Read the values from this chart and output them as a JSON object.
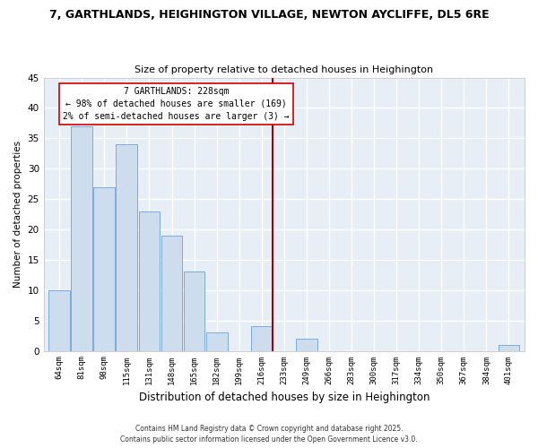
{
  "title": "7, GARTHLANDS, HEIGHINGTON VILLAGE, NEWTON AYCLIFFE, DL5 6RE",
  "subtitle": "Size of property relative to detached houses in Heighington",
  "xlabel": "Distribution of detached houses by size in Heighington",
  "ylabel": "Number of detached properties",
  "bar_labels": [
    "64sqm",
    "81sqm",
    "98sqm",
    "115sqm",
    "131sqm",
    "148sqm",
    "165sqm",
    "182sqm",
    "199sqm",
    "216sqm",
    "233sqm",
    "249sqm",
    "266sqm",
    "283sqm",
    "300sqm",
    "317sqm",
    "334sqm",
    "350sqm",
    "367sqm",
    "384sqm",
    "401sqm"
  ],
  "bar_values": [
    10,
    37,
    27,
    34,
    23,
    19,
    13,
    3,
    0,
    4,
    0,
    2,
    0,
    0,
    0,
    0,
    0,
    0,
    0,
    0,
    1
  ],
  "bar_color": "#cddded",
  "bar_edge_color": "#7aabe0",
  "vline_x": 9.5,
  "vline_color": "#aa0000",
  "ylim": [
    0,
    45
  ],
  "yticks": [
    0,
    5,
    10,
    15,
    20,
    25,
    30,
    35,
    40,
    45
  ],
  "annotation_title": "7 GARTHLANDS: 228sqm",
  "annotation_line1": "← 98% of detached houses are smaller (169)",
  "annotation_line2": "2% of semi-detached houses are larger (3) →",
  "footer1": "Contains HM Land Registry data © Crown copyright and database right 2025.",
  "footer2": "Contains public sector information licensed under the Open Government Licence v3.0.",
  "bg_color": "#ffffff",
  "plot_bg_color": "#e8eef5"
}
